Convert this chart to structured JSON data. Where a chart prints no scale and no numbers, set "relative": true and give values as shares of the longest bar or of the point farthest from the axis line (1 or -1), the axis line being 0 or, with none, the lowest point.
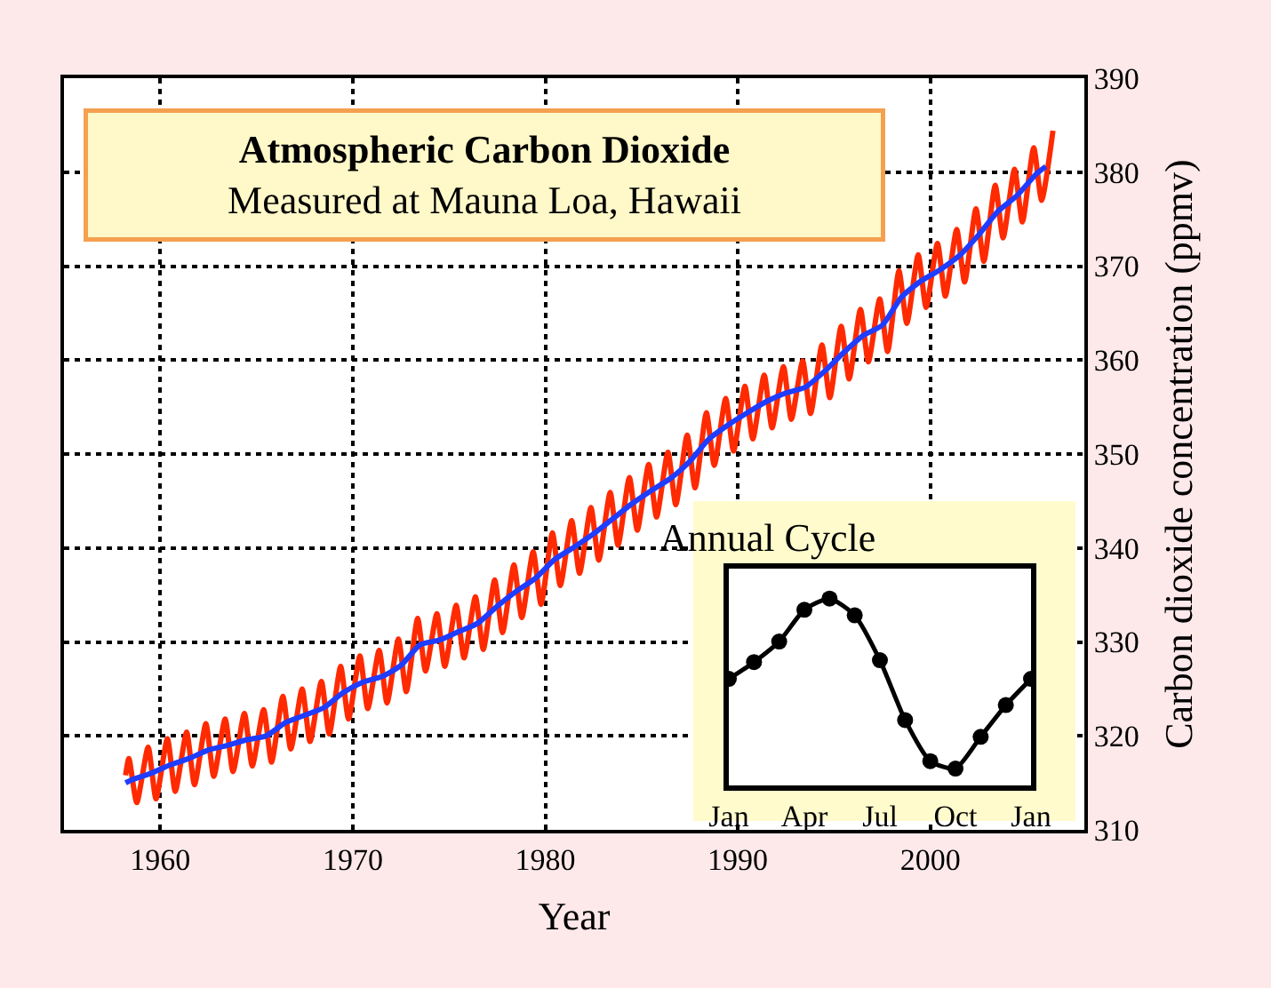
{
  "chart_data": [
    {
      "type": "line",
      "title": "Atmospheric Carbon Dioxide",
      "subtitle": "Measured at Mauna Loa, Hawaii",
      "xlabel": "Year",
      "ylabel": "Carbon dioxide concentration (ppmv)",
      "xlim": [
        1955,
        2008
      ],
      "xticks": [
        1960,
        1970,
        1980,
        1990,
        2000
      ],
      "ylim": [
        310,
        390
      ],
      "yticks": [
        310,
        320,
        330,
        340,
        350,
        360,
        370,
        380,
        390
      ],
      "grid": true,
      "marker": "none",
      "series": [
        {
          "color": "#ff2a00",
          "x": [
            1958.2,
            1958.37,
            1958.78,
            1959.37,
            1959.78,
            1960.37,
            1960.78,
            1961.37,
            1961.78,
            1962.37,
            1962.78,
            1963.37,
            1963.78,
            1964.37,
            1964.78,
            1965.37,
            1965.78,
            1966.37,
            1966.78,
            1967.37,
            1967.78,
            1968.37,
            1968.78,
            1969.37,
            1969.78,
            1970.37,
            1970.78,
            1971.37,
            1971.78,
            1972.37,
            1972.78,
            1973.37,
            1973.78,
            1974.37,
            1974.78,
            1975.37,
            1975.78,
            1976.37,
            1976.78,
            1977.37,
            1977.78,
            1978.37,
            1978.78,
            1979.37,
            1979.78,
            1980.37,
            1980.78,
            1981.37,
            1981.78,
            1982.37,
            1982.78,
            1983.37,
            1983.78,
            1984.37,
            1984.78,
            1985.37,
            1985.78,
            1986.37,
            1986.78,
            1987.37,
            1987.78,
            1988.37,
            1988.78,
            1989.37,
            1989.78,
            1990.37,
            1990.78,
            1991.37,
            1991.78,
            1992.37,
            1992.78,
            1993.37,
            1993.78,
            1994.37,
            1994.78,
            1995.37,
            1995.78,
            1996.37,
            1996.78,
            1997.37,
            1997.78,
            1998.37,
            1998.78,
            1999.37,
            1999.78,
            2000.37,
            2000.78,
            2001.37,
            2001.78,
            2002.37,
            2002.78,
            2003.37,
            2003.78,
            2004.37,
            2004.78,
            2005.37,
            2005.78,
            2006.37
          ],
          "values": [
            315.8,
            317.6,
            312.9,
            318.8,
            313.3,
            319.7,
            314.1,
            320.4,
            314.8,
            321.3,
            315.7,
            321.8,
            316.2,
            322.4,
            316.8,
            322.8,
            317.2,
            324.2,
            318.6,
            325.0,
            319.4,
            325.8,
            320.2,
            327.4,
            321.8,
            328.5,
            322.9,
            329.1,
            323.5,
            330.3,
            324.7,
            332.5,
            326.9,
            333.0,
            327.4,
            333.9,
            328.3,
            334.8,
            329.2,
            336.6,
            331.0,
            338.2,
            332.6,
            339.6,
            334.0,
            341.6,
            336.0,
            342.9,
            337.3,
            344.3,
            338.7,
            345.9,
            340.3,
            347.5,
            341.9,
            348.9,
            343.3,
            350.2,
            344.6,
            352.0,
            346.4,
            354.4,
            348.8,
            355.9,
            350.3,
            357.2,
            351.6,
            358.4,
            352.8,
            359.3,
            353.7,
            359.9,
            354.3,
            361.6,
            356.0,
            363.6,
            358.0,
            365.4,
            359.8,
            366.5,
            360.9,
            369.5,
            363.9,
            371.2,
            365.6,
            372.4,
            366.8,
            373.9,
            368.3,
            376.1,
            370.5,
            378.6,
            373.0,
            380.3,
            374.7,
            382.6,
            377.0,
            384.4
          ]
        },
        {
          "color": "#1f3dff",
          "x": [
            1958.2,
            1958.5,
            1959.5,
            1960.5,
            1961.5,
            1962.5,
            1963.5,
            1964.5,
            1965.5,
            1966.5,
            1967.5,
            1968.5,
            1969.5,
            1970.5,
            1971.5,
            1972.5,
            1973.5,
            1974.5,
            1975.5,
            1976.5,
            1977.5,
            1978.5,
            1979.5,
            1980.5,
            1981.5,
            1982.5,
            1983.5,
            1984.5,
            1985.5,
            1986.5,
            1987.5,
            1988.5,
            1989.5,
            1990.5,
            1991.5,
            1992.5,
            1993.5,
            1994.5,
            1995.5,
            1996.5,
            1997.5,
            1998.5,
            1999.5,
            2000.5,
            2001.5,
            2002.5,
            2003.5,
            2004.5,
            2005.5,
            2006.0
          ],
          "values": [
            315.0,
            315.3,
            316.0,
            316.9,
            317.6,
            318.5,
            319.0,
            319.6,
            320.0,
            321.4,
            322.2,
            323.0,
            324.6,
            325.7,
            326.3,
            327.5,
            329.7,
            330.2,
            331.1,
            332.0,
            333.8,
            335.4,
            336.8,
            338.8,
            340.1,
            341.5,
            343.1,
            344.7,
            346.1,
            347.4,
            349.2,
            351.6,
            353.1,
            354.4,
            355.6,
            356.5,
            357.1,
            358.8,
            360.8,
            362.6,
            363.7,
            366.7,
            368.4,
            369.6,
            371.1,
            373.3,
            375.8,
            377.5,
            379.8,
            380.6
          ]
        }
      ]
    },
    {
      "type": "line",
      "title": "Annual Cycle",
      "relative": true,
      "grid": false,
      "marker": "circle",
      "categories": [
        "Jan",
        null,
        null,
        "Apr",
        null,
        null,
        "Jul",
        null,
        null,
        "Oct",
        null,
        null,
        "Jan"
      ],
      "series": [
        {
          "color": "#000000",
          "values": [
            0.57,
            0.66,
            0.77,
            0.94,
            1.0,
            0.91,
            0.67,
            0.35,
            0.13,
            0.09,
            0.26,
            0.43,
            0.57
          ]
        }
      ]
    }
  ]
}
